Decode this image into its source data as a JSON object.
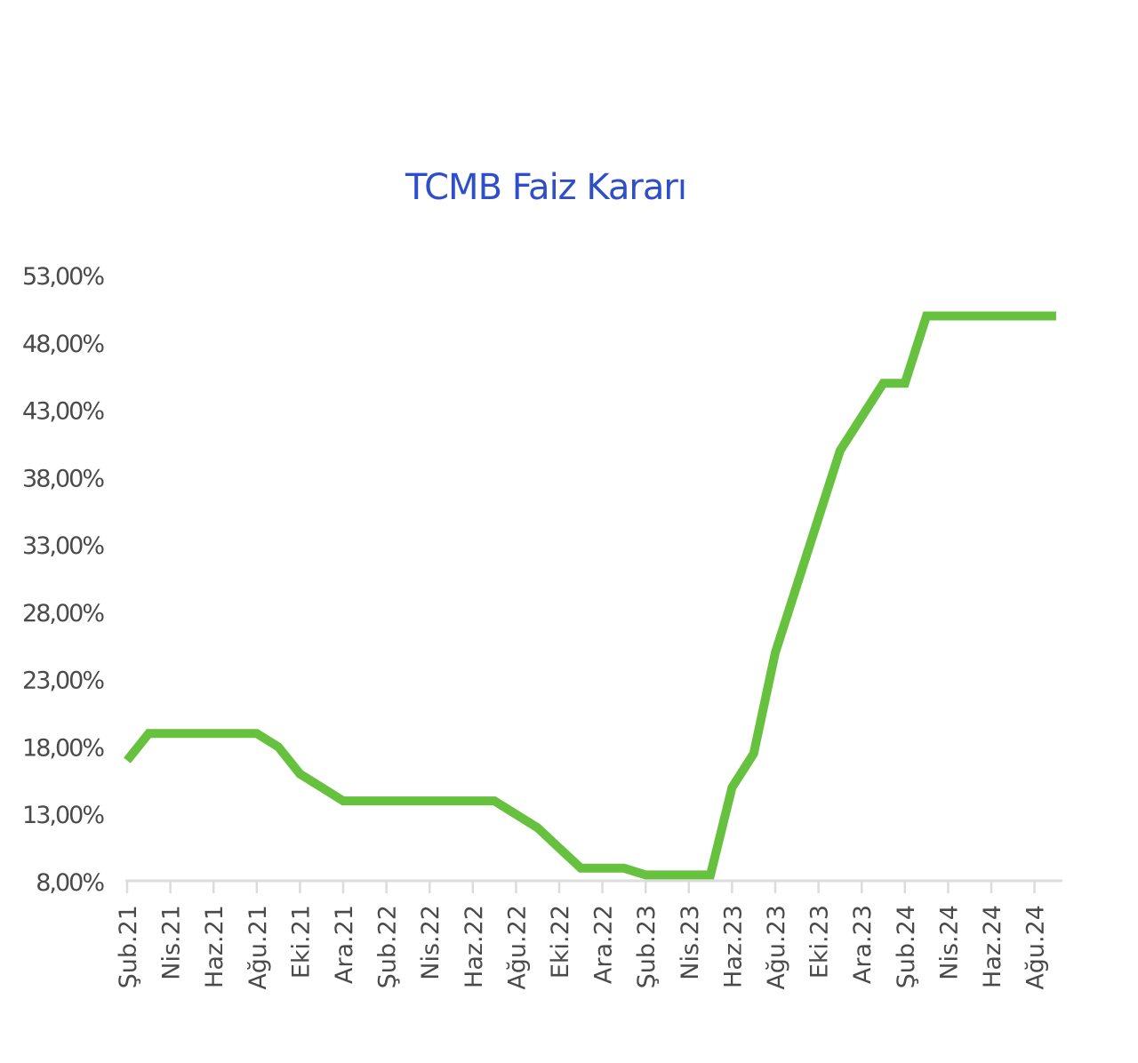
{
  "chart_data": {
    "type": "line",
    "title": "TCMB Faiz Kararı",
    "xlabel": "",
    "ylabel": "",
    "ylim": [
      8,
      53
    ],
    "y_ticks": [
      "53,00%",
      "48,00%",
      "43,00%",
      "38,00%",
      "33,00%",
      "28,00%",
      "23,00%",
      "18,00%",
      "13,00%",
      "8,00%"
    ],
    "y_tick_values": [
      53,
      48,
      43,
      38,
      33,
      28,
      23,
      18,
      13,
      8
    ],
    "x_tick_labels": [
      "Şub.21",
      "Nis.21",
      "Haz.21",
      "Ağu.21",
      "Eki.21",
      "Ara.21",
      "Şub.22",
      "Nis.22",
      "Haz.22",
      "Ağu.22",
      "Eki.22",
      "Ara.22",
      "Şub.23",
      "Nis.23",
      "Haz.23",
      "Ağu.23",
      "Eki.23",
      "Ara.23",
      "Şub.24",
      "Nis.24",
      "Haz.24",
      "Ağu.24"
    ],
    "grid": false,
    "legend": "none",
    "line_color": "#66c13f",
    "series": [
      {
        "name": "TCMB Faiz Kararı",
        "x": [
          "Şub.21",
          "Mar.21",
          "Nis.21",
          "May.21",
          "Haz.21",
          "Tem.21",
          "Ağu.21",
          "Eyl.21",
          "Eki.21",
          "Kas.21",
          "Ara.21",
          "Oca.22",
          "Şub.22",
          "Mar.22",
          "Nis.22",
          "May.22",
          "Haz.22",
          "Tem.22",
          "Ağu.22",
          "Eyl.22",
          "Eki.22",
          "Kas.22",
          "Ara.22",
          "Oca.23",
          "Şub.23",
          "Mar.23",
          "Nis.23",
          "May.23",
          "Haz.23",
          "Tem.23",
          "Ağu.23",
          "Eyl.23",
          "Eki.23",
          "Kas.23",
          "Ara.23",
          "Oca.24",
          "Şub.24",
          "Mar.24",
          "Nis.24",
          "May.24",
          "Haz.24",
          "Tem.24",
          "Ağu.24",
          "Eyl.24"
        ],
        "values": [
          17,
          19,
          19,
          19,
          19,
          19,
          19,
          18,
          16,
          15,
          14,
          14,
          14,
          14,
          14,
          14,
          14,
          14,
          13,
          12,
          10.5,
          9,
          9,
          9,
          8.5,
          8.5,
          8.5,
          8.5,
          15,
          17.5,
          25,
          30,
          35,
          40,
          42.5,
          45,
          45,
          50,
          50,
          50,
          50,
          50,
          50,
          50
        ]
      }
    ]
  }
}
